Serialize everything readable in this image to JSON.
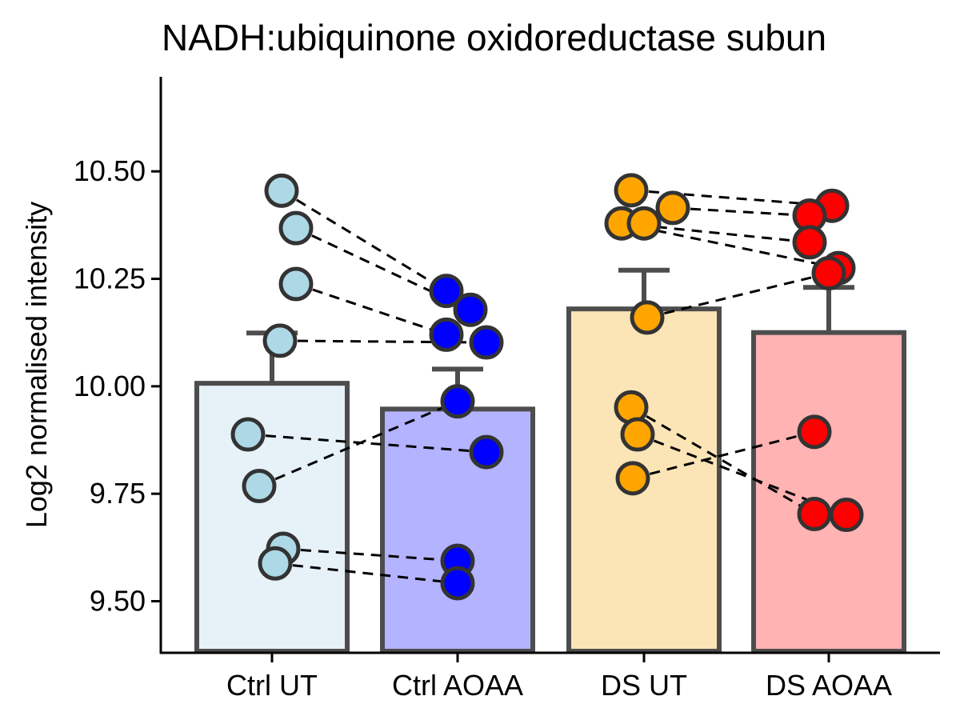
{
  "chart_data": {
    "type": "bar",
    "title": "NADH:ubiquinone oxidoreductase subun",
    "ylabel": "Log2 normalised intensity",
    "xlabel": "",
    "categories": [
      "Ctrl UT",
      "Ctrl AOAA",
      "DS UT",
      "DS AOAA"
    ],
    "ylim": [
      9.38,
      10.72
    ],
    "yticks": [
      9.5,
      9.75,
      10.0,
      10.25,
      10.5
    ],
    "ytick_labels": [
      "9.50",
      "9.75",
      "10.00",
      "10.25",
      "10.50"
    ],
    "grid": false,
    "means": [
      10.007,
      9.947,
      10.18,
      10.125
    ],
    "error_upper": [
      10.124,
      10.04,
      10.27,
      10.23
    ],
    "bar_fill_colors": [
      "#e6f1f8",
      "#b3b3ff",
      "#fbe4b6",
      "#ffb3b3"
    ],
    "point_colors": [
      "#add8e6",
      "#0000ff",
      "#ffa500",
      "#ff0000"
    ],
    "bar_edge_color": "#4d4d4d",
    "points": [
      [
        10.455,
        10.368,
        10.238,
        10.106,
        9.888,
        9.768,
        9.622,
        9.588
      ],
      [
        10.222,
        10.178,
        10.12,
        10.102,
        9.965,
        9.847,
        9.594,
        9.542
      ],
      [
        10.456,
        10.415,
        10.379,
        10.379,
        10.16,
        9.951,
        9.888,
        9.786
      ],
      [
        10.42,
        10.397,
        10.335,
        10.275,
        10.263,
        9.894,
        9.703,
        9.701
      ]
    ],
    "pairs": [
      {
        "series": [
          0,
          1
        ],
        "from": [
          10.455,
          10.368,
          10.238,
          10.106,
          9.888,
          9.768,
          9.622,
          9.588
        ],
        "to": [
          10.222,
          10.178,
          10.12,
          10.102,
          9.847,
          9.965,
          9.594,
          9.542
        ]
      },
      {
        "series": [
          2,
          3
        ],
        "from": [
          10.456,
          10.415,
          10.379,
          10.379,
          10.16,
          9.951,
          9.888,
          9.786
        ],
        "to": [
          10.42,
          10.397,
          10.335,
          10.275,
          10.263,
          9.703,
          9.701,
          9.894
        ]
      }
    ]
  }
}
